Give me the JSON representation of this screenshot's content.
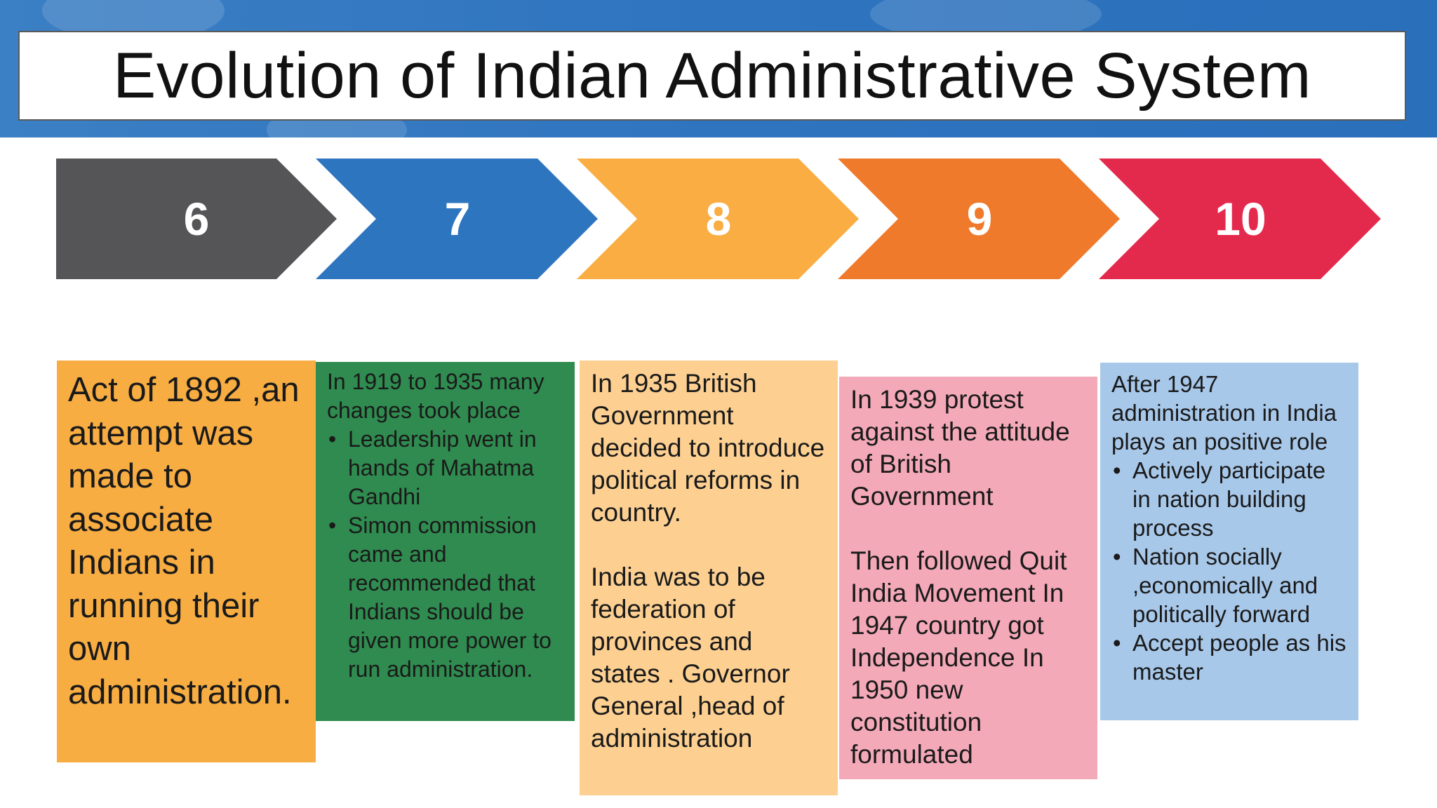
{
  "title": "Evolution of Indian Administrative System",
  "colors": {
    "header_blue": "#2e74bf",
    "step6": "#555457",
    "step7": "#2e75c0",
    "step8": "#f9ad42",
    "step9": "#ef7a2b",
    "step10": "#e42a4c",
    "card1": "#f8ad42",
    "card2": "#2f8b4f",
    "card3": "#fdd092",
    "card4": "#f4a9b8",
    "card5": "#a8c8ea"
  },
  "steps": [
    {
      "label": "6"
    },
    {
      "label": "7"
    },
    {
      "label": "8"
    },
    {
      "label": "9"
    },
    {
      "label": "10"
    }
  ],
  "cards": [
    {
      "text": "Act of 1892 ,an attempt was made to associate Indians in running their own administration."
    },
    {
      "intro": "In 1919 to 1935 many changes took place",
      "bullets": [
        "Leadership went in hands of Mahatma Gandhi",
        "Simon commission came and recommended that Indians should be given more power to run administration."
      ]
    },
    {
      "paragraphs": [
        "In 1935 British Government decided to introduce political reforms in country.",
        "India was to be federation of provinces and states . Governor General ,head of administration"
      ]
    },
    {
      "paragraphs": [
        "In 1939 protest against the attitude of British Government",
        "Then followed Quit India Movement In 1947 country got Independence In 1950 new constitution formulated"
      ]
    },
    {
      "intro": "After 1947 administration in India plays an positive role",
      "bullets": [
        "Actively participate in nation building process",
        "Nation socially ,economically and politically forward",
        "Accept people as his master"
      ]
    }
  ]
}
